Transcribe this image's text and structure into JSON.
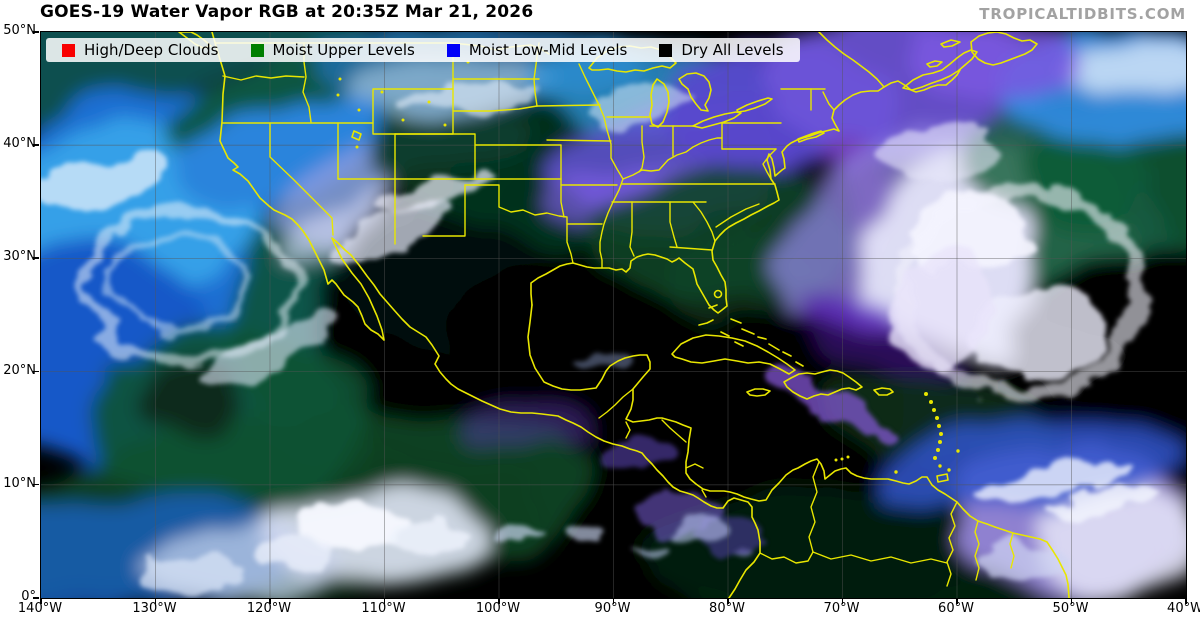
{
  "header": {
    "title": "GOES-19 Water Vapor RGB at 20:35Z Mar 21, 2026",
    "watermark": "TROPICALTIDBITS.COM"
  },
  "legend": {
    "items": [
      {
        "label": "High/Deep Clouds",
        "color": "#f80000"
      },
      {
        "label": "Moist Upper Levels",
        "color": "#007f00"
      },
      {
        "label": "Moist Low-Mid Levels",
        "color": "#0000f8"
      },
      {
        "label": "Dry All Levels",
        "color": "#000000"
      }
    ]
  },
  "axes": {
    "lat_labels": [
      "50°N",
      "40°N",
      "30°N",
      "20°N",
      "10°N",
      "0°"
    ],
    "lon_labels": [
      "140°W",
      "130°W",
      "120°W",
      "110°W",
      "100°W",
      "90°W",
      "80°W",
      "70°W",
      "60°W",
      "50°W",
      "40°W"
    ]
  },
  "map": {
    "boundary_color": "#e8e600",
    "description": "GOES-19 water vapor RGB satellite imagery over North America, the eastern Pacific, Gulf of Mexico, Caribbean and western Atlantic"
  }
}
